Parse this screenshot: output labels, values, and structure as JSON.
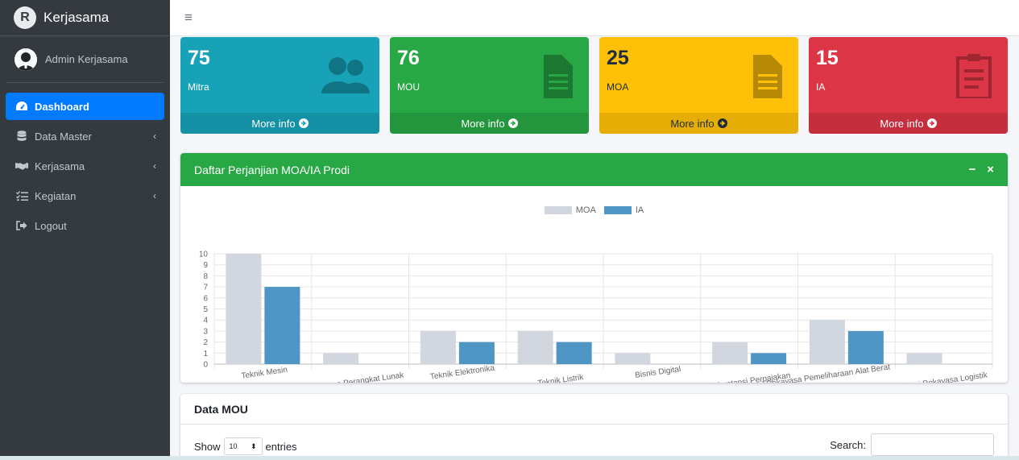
{
  "app": {
    "brand": "Kerjasama",
    "brand_letter": "R",
    "user": "Admin Kerjasama"
  },
  "sidebar": {
    "items": [
      {
        "label": "Dashboard",
        "icon": "tachometer-icon",
        "active": true,
        "chevron": ""
      },
      {
        "label": "Data Master",
        "icon": "database-icon",
        "active": false,
        "chevron": "‹"
      },
      {
        "label": "Kerjasama",
        "icon": "handshake-icon",
        "active": false,
        "chevron": "‹"
      },
      {
        "label": "Kegiatan",
        "icon": "tasks-icon",
        "active": false,
        "chevron": "‹"
      },
      {
        "label": "Logout",
        "icon": "sign-out-icon",
        "active": false,
        "chevron": ""
      }
    ]
  },
  "topbar": {
    "menu_icon": "≡"
  },
  "boxes": [
    {
      "value": "75",
      "label": "Mitra",
      "more": "More info",
      "icon": "users-icon",
      "color": "#17a2b8"
    },
    {
      "value": "76",
      "label": "MOU",
      "more": "More info",
      "icon": "file-icon",
      "color": "#28a745"
    },
    {
      "value": "25",
      "label": "MOA",
      "more": "More info",
      "icon": "file-icon",
      "color": "#ffc107"
    },
    {
      "value": "15",
      "label": "IA",
      "more": "More info",
      "icon": "clipboard-icon",
      "color": "#dc3545"
    }
  ],
  "chart_card": {
    "title": "Daftar Perjanjian MOA/IA Prodi",
    "minimize": "−",
    "close": "×"
  },
  "chart_data": {
    "type": "bar",
    "categories": [
      "Teknik Mesin",
      "Teknologi Rekayasa Perangkat Lunak",
      "Teknik Elektronika",
      "Teknik Listrik",
      "Bisnis Digital",
      "Akuntansi Perpajakan",
      "Teknologi Rekayasa Pemeliharaan Alat Berat",
      "Teknologi Rekayasa Logistik"
    ],
    "series": [
      {
        "name": "MOA",
        "values": [
          10,
          1,
          3,
          3,
          1,
          2,
          4,
          1
        ],
        "color": "#d2d6de"
      },
      {
        "name": "IA",
        "values": [
          7,
          0,
          2,
          2,
          0,
          1,
          3,
          0
        ],
        "color": "#4f96c4"
      }
    ],
    "ylim": [
      0,
      10
    ],
    "yticks": [
      "0",
      "1",
      "2",
      "3",
      "4",
      "5",
      "6",
      "7",
      "8",
      "9",
      "10"
    ],
    "legend": "top",
    "grid": true
  },
  "mou_card": {
    "title": "Data MOU",
    "show_label": "Show",
    "entries_value": "10",
    "entries_label": "entries",
    "search_label": "Search:"
  }
}
